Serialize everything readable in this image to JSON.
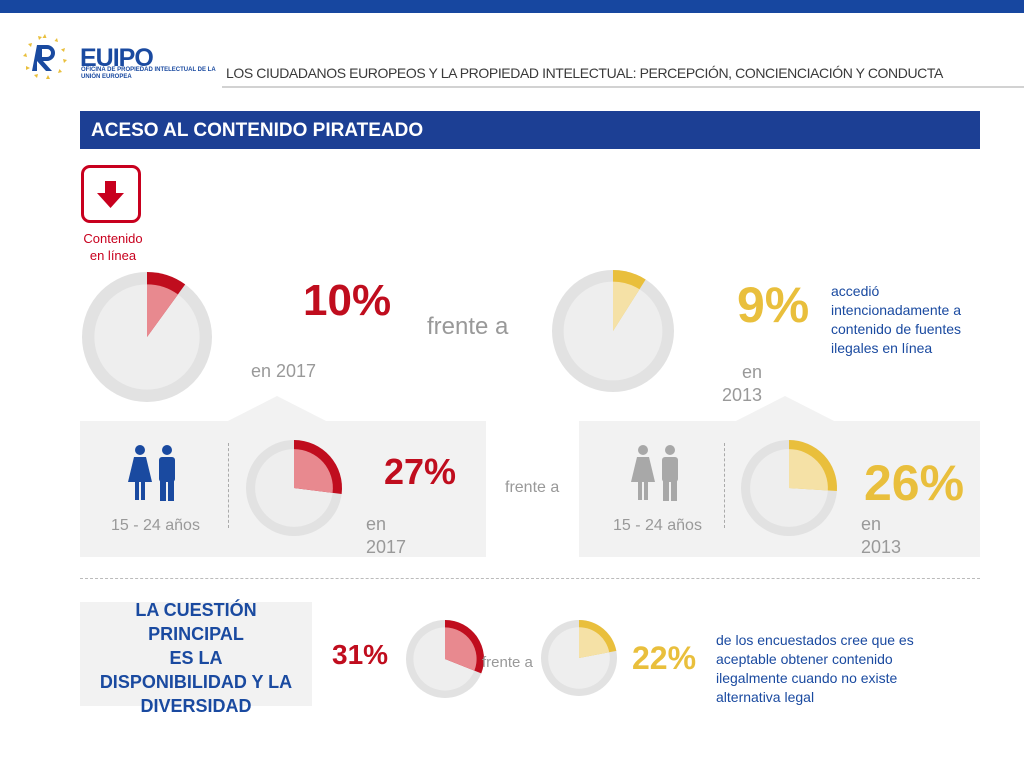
{
  "header": {
    "logo_text": "EUIPO",
    "logo_subtitle": "OFICINA DE PROPIEDAD INTELECTUAL DE LA UNIÓN EUROPEA",
    "title": "LOS CIUDADANOS EUROPEOS Y LA PROPIEDAD INTELECTUAL: PERCEPCIÓN, CONCIENCIACIÓN Y CONDUCTA"
  },
  "section": {
    "title": "ACESO AL CONTENIDO PIRATEADO",
    "online_label_line1": "Contenido",
    "online_label_line2": "en línea"
  },
  "colors": {
    "red": "#c00d1e",
    "yellow": "#e9bf3c",
    "blue": "#1a4aa0",
    "gray_ring": "#e0e0e0"
  },
  "top_row": {
    "left_value": "10%",
    "left_year": "en 2017",
    "versus": "frente a",
    "right_value": "9%",
    "right_year_line1": "en",
    "right_year_line2": "2013",
    "description": "accedió intencionadamente a contenido de fuentes ilegales en línea",
    "left_percent": 10,
    "right_percent": 9
  },
  "youth_row": {
    "left_age": "15 - 24 años",
    "left_value": "27%",
    "left_year_line1": "en",
    "left_year_line2": "2017",
    "versus": "frente a",
    "right_age": "15 - 24 años",
    "right_value": "26%",
    "right_year_line1": "en",
    "right_year_line2": "2013",
    "left_percent": 27,
    "right_percent": 26
  },
  "bottom_row": {
    "callout_line1": "LA CUESTIÓN",
    "callout_line2": "PRINCIPAL",
    "callout_line3": "ES LA",
    "callout_line4": "DISPONIBILIDAD Y LA",
    "callout_line5": "DIVERSIDAD",
    "left_value": "31%",
    "versus": "frente a",
    "right_value": "22%",
    "description": "de los encuestados cree que es aceptable obtener contenido ilegalmente cuando no existe alternativa legal",
    "left_percent": 31,
    "right_percent": 22
  }
}
